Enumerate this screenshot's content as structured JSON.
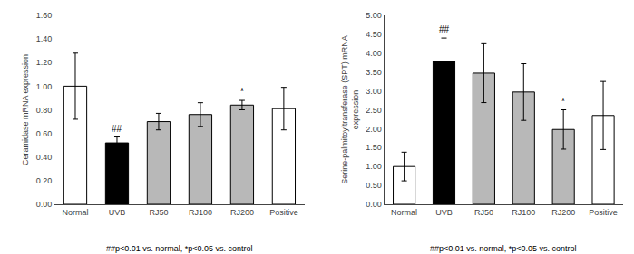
{
  "chart_data": [
    {
      "type": "bar",
      "categories": [
        "Normal",
        "UVB",
        "RJ50",
        "RJ100",
        "RJ200",
        "Positive"
      ],
      "values": [
        1.0,
        0.52,
        0.7,
        0.76,
        0.84,
        0.81
      ],
      "errors": [
        0.28,
        0.05,
        0.07,
        0.1,
        0.04,
        0.18
      ],
      "colors": [
        "white",
        "black",
        "#b8b8b8",
        "#b8b8b8",
        "#b8b8b8",
        "white"
      ],
      "ylabel": "Ceramidase mRNA expression",
      "ylim": [
        0.0,
        1.6
      ],
      "yticks": [
        {
          "value": 0.0,
          "label": "0.00"
        },
        {
          "value": 0.2,
          "label": "0.20"
        },
        {
          "value": 0.4,
          "label": "0.40"
        },
        {
          "value": 0.6,
          "label": "0.60"
        },
        {
          "value": 0.8,
          "label": "0.80"
        },
        {
          "value": 1.0,
          "label": "1.00"
        },
        {
          "value": 1.2,
          "label": "1.20"
        },
        {
          "value": 1.4,
          "label": "1.40"
        },
        {
          "value": 1.6,
          "label": "1.60"
        }
      ],
      "annotations": [
        {
          "text": "##",
          "category": "UVB"
        },
        {
          "text": "*",
          "category": "RJ200"
        }
      ],
      "footnote": "##p<0.01 vs. normal, *p<0.05 vs. control",
      "grid": false
    },
    {
      "type": "bar",
      "categories": [
        "Normal",
        "UVB",
        "RJ50",
        "RJ100",
        "RJ200",
        "Positive"
      ],
      "values": [
        1.0,
        3.78,
        3.47,
        2.97,
        1.98,
        2.35
      ],
      "errors": [
        0.38,
        0.62,
        0.78,
        0.75,
        0.52,
        0.9
      ],
      "colors": [
        "white",
        "black",
        "#b8b8b8",
        "#b8b8b8",
        "#b8b8b8",
        "white"
      ],
      "ylabel": "Serine-palmitoyltransferase (SPT) mRNA\nexpression",
      "ylim": [
        0.0,
        5.0
      ],
      "yticks": [
        {
          "value": 0.0,
          "label": "0.00"
        },
        {
          "value": 0.5,
          "label": "0.50"
        },
        {
          "value": 1.0,
          "label": "1.00"
        },
        {
          "value": 1.5,
          "label": "1.50"
        },
        {
          "value": 2.0,
          "label": "2.00"
        },
        {
          "value": 2.5,
          "label": "2.50"
        },
        {
          "value": 3.0,
          "label": "3.00"
        },
        {
          "value": 3.5,
          "label": "3.50"
        },
        {
          "value": 4.0,
          "label": "4.00"
        },
        {
          "value": 4.5,
          "label": "4.50"
        },
        {
          "value": 5.0,
          "label": "5.00"
        }
      ],
      "annotations": [
        {
          "text": "##",
          "category": "UVB"
        },
        {
          "text": "*",
          "category": "RJ200"
        }
      ],
      "footnote": "##p<0.01 vs. normal, *p<0.05 vs. control",
      "grid": false
    }
  ]
}
